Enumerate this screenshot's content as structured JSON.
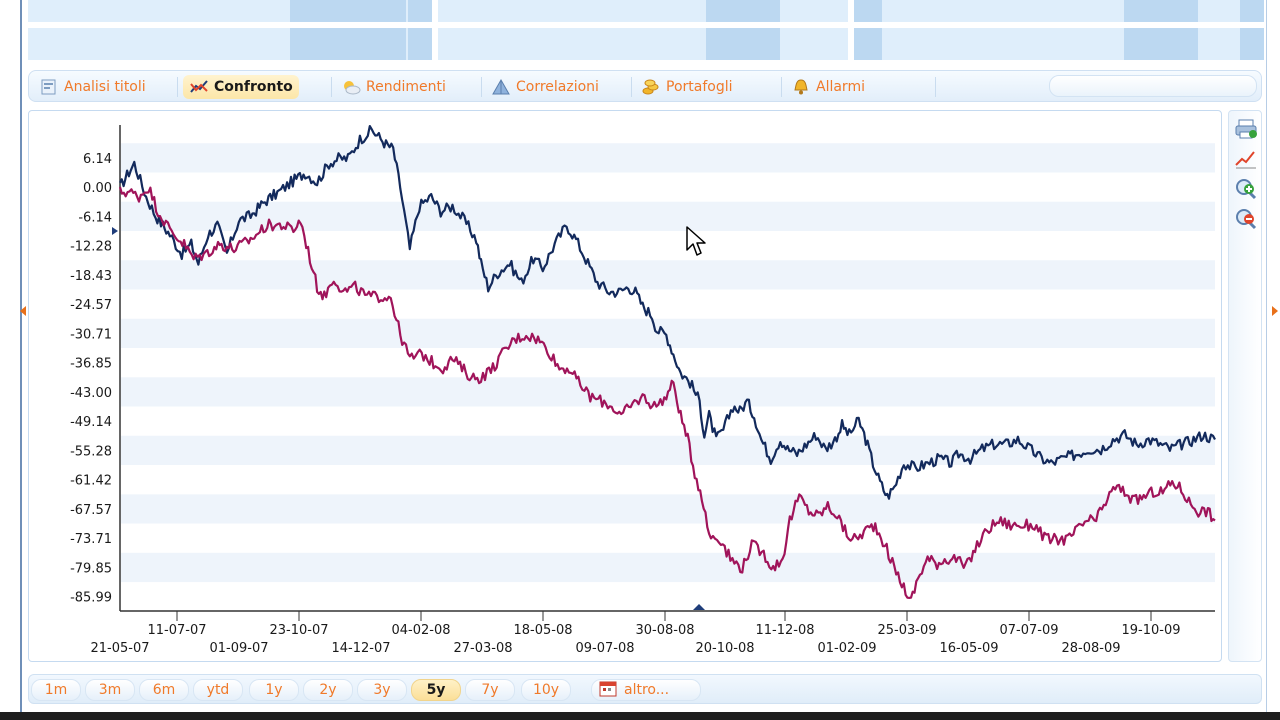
{
  "tabs": [
    {
      "id": "analisi",
      "label": "Analisi titoli",
      "icon": "document-chart-icon",
      "active": false
    },
    {
      "id": "confronto",
      "label": "Confronto",
      "icon": "compare-lines-icon",
      "active": true
    },
    {
      "id": "rendimenti",
      "label": "Rendimenti",
      "icon": "sun-cloud-icon",
      "active": false
    },
    {
      "id": "correlazioni",
      "label": "Correlazioni",
      "icon": "pyramid-icon",
      "active": false
    },
    {
      "id": "portafogli",
      "label": "Portafogli",
      "icon": "coins-icon",
      "active": false
    },
    {
      "id": "allarmi",
      "label": "Allarmi",
      "icon": "bell-icon",
      "active": false
    }
  ],
  "periods": {
    "items": [
      "1m",
      "3m",
      "6m",
      "ytd",
      "1y",
      "2y",
      "3y",
      "5y",
      "7y",
      "10y"
    ],
    "active": "5y",
    "altro_label": "altro..."
  },
  "tools": [
    "print-icon",
    "line-chart-icon",
    "zoom-in-icon",
    "zoom-out-icon"
  ],
  "colors": {
    "series_a": "#132a5c",
    "series_b": "#a0145a",
    "accent": "#f07a2a",
    "band": "#eef4fb"
  },
  "chart_data": {
    "type": "line",
    "title": "",
    "xlabel": "",
    "ylabel": "",
    "ylim": [
      -89.0,
      12.2
    ],
    "y_ticks": [
      "6.14",
      "0.00",
      "-6.14",
      "-12.28",
      "-18.43",
      "-24.57",
      "-30.71",
      "-36.85",
      "-43.00",
      "-49.14",
      "-55.28",
      "-61.42",
      "-67.57",
      "-73.71",
      "-79.85",
      "-85.99"
    ],
    "x_ticks_upper": [
      "11-07-07",
      "23-10-07",
      "04-02-08",
      "18-05-08",
      "30-08-08",
      "11-12-08",
      "25-03-09",
      "07-07-09",
      "19-10-09"
    ],
    "x_ticks_lower": [
      "21-05-07",
      "01-09-07",
      "14-12-07",
      "27-03-08",
      "09-07-08",
      "20-10-08",
      "01-02-09",
      "16-05-09",
      "28-08-09"
    ],
    "x_range_days": [
      0,
      922
    ],
    "series": [
      {
        "color": "#132a5c",
        "points": [
          [
            0,
            0
          ],
          [
            12,
            5
          ],
          [
            22,
            -2
          ],
          [
            30,
            -6
          ],
          [
            42,
            -10
          ],
          [
            52,
            -14
          ],
          [
            60,
            -12
          ],
          [
            66,
            -16
          ],
          [
            74,
            -10
          ],
          [
            82,
            -8
          ],
          [
            90,
            -14
          ],
          [
            100,
            -7
          ],
          [
            110,
            -6
          ],
          [
            122,
            -3
          ],
          [
            134,
            -1
          ],
          [
            144,
            1
          ],
          [
            156,
            3
          ],
          [
            166,
            1
          ],
          [
            176,
            5
          ],
          [
            184,
            6
          ],
          [
            192,
            6
          ],
          [
            202,
            10
          ],
          [
            212,
            12
          ],
          [
            224,
            9
          ],
          [
            230,
            8
          ],
          [
            236,
            0
          ],
          [
            244,
            -13
          ],
          [
            252,
            -4
          ],
          [
            262,
            -2
          ],
          [
            270,
            -5
          ],
          [
            280,
            -4
          ],
          [
            290,
            -7
          ],
          [
            300,
            -11
          ],
          [
            304,
            -16
          ],
          [
            310,
            -21
          ],
          [
            318,
            -18
          ],
          [
            328,
            -16
          ],
          [
            338,
            -20
          ],
          [
            348,
            -15
          ],
          [
            356,
            -17
          ],
          [
            366,
            -12
          ],
          [
            376,
            -8
          ],
          [
            384,
            -11
          ],
          [
            394,
            -16
          ],
          [
            402,
            -20
          ],
          [
            412,
            -22
          ],
          [
            420,
            -22
          ],
          [
            428,
            -21
          ],
          [
            434,
            -22
          ],
          [
            440,
            -25
          ],
          [
            448,
            -27
          ],
          [
            452,
            -30
          ],
          [
            460,
            -31
          ],
          [
            466,
            -35
          ],
          [
            472,
            -39
          ],
          [
            480,
            -41
          ],
          [
            488,
            -45
          ],
          [
            492,
            -52
          ],
          [
            496,
            -48
          ],
          [
            502,
            -53
          ],
          [
            508,
            -51
          ],
          [
            516,
            -46
          ],
          [
            522,
            -47
          ],
          [
            528,
            -45
          ],
          [
            534,
            -48
          ],
          [
            540,
            -53
          ],
          [
            548,
            -57
          ],
          [
            556,
            -53
          ],
          [
            562,
            -55
          ],
          [
            570,
            -56
          ],
          [
            578,
            -54
          ],
          [
            586,
            -52
          ],
          [
            594,
            -55
          ],
          [
            602,
            -53
          ],
          [
            608,
            -50
          ],
          [
            614,
            -52
          ],
          [
            622,
            -49
          ],
          [
            628,
            -53
          ],
          [
            634,
            -58
          ],
          [
            640,
            -62
          ],
          [
            646,
            -65
          ],
          [
            652,
            -63
          ],
          [
            660,
            -58
          ],
          [
            670,
            -59
          ],
          [
            680,
            -58
          ],
          [
            690,
            -57
          ],
          [
            700,
            -58
          ],
          [
            706,
            -56
          ],
          [
            716,
            -57
          ],
          [
            726,
            -55
          ],
          [
            736,
            -54
          ],
          [
            746,
            -54
          ],
          [
            756,
            -53
          ],
          [
            766,
            -55
          ],
          [
            776,
            -57
          ],
          [
            784,
            -58
          ],
          [
            794,
            -57
          ],
          [
            806,
            -56
          ],
          [
            816,
            -55
          ],
          [
            826,
            -55
          ],
          [
            836,
            -53
          ],
          [
            846,
            -52
          ],
          [
            856,
            -54
          ],
          [
            866,
            -53
          ],
          [
            876,
            -54
          ],
          [
            884,
            -55
          ],
          [
            894,
            -54
          ],
          [
            904,
            -53
          ],
          [
            912,
            -52
          ],
          [
            922,
            -53
          ]
        ]
      },
      {
        "color": "#a0145a",
        "points": [
          [
            0,
            -1
          ],
          [
            8,
            -1
          ],
          [
            16,
            -2
          ],
          [
            24,
            0
          ],
          [
            32,
            -5
          ],
          [
            42,
            -9
          ],
          [
            54,
            -12
          ],
          [
            62,
            -15
          ],
          [
            72,
            -14
          ],
          [
            84,
            -12
          ],
          [
            96,
            -13
          ],
          [
            110,
            -11
          ],
          [
            124,
            -8
          ],
          [
            136,
            -8
          ],
          [
            146,
            -9
          ],
          [
            152,
            -7
          ],
          [
            160,
            -15
          ],
          [
            166,
            -21
          ],
          [
            172,
            -23
          ],
          [
            180,
            -19
          ],
          [
            188,
            -22
          ],
          [
            198,
            -21
          ],
          [
            208,
            -23
          ],
          [
            218,
            -23
          ],
          [
            228,
            -23
          ],
          [
            236,
            -31
          ],
          [
            244,
            -36
          ],
          [
            254,
            -35
          ],
          [
            264,
            -37
          ],
          [
            272,
            -38
          ],
          [
            280,
            -36
          ],
          [
            288,
            -38
          ],
          [
            296,
            -40
          ],
          [
            304,
            -40
          ],
          [
            314,
            -38
          ],
          [
            322,
            -35
          ],
          [
            332,
            -32
          ],
          [
            342,
            -31
          ],
          [
            352,
            -32
          ],
          [
            360,
            -34
          ],
          [
            370,
            -38
          ],
          [
            378,
            -38
          ],
          [
            386,
            -41
          ],
          [
            396,
            -44
          ],
          [
            406,
            -45
          ],
          [
            414,
            -46
          ],
          [
            422,
            -48
          ],
          [
            430,
            -46
          ],
          [
            440,
            -44
          ],
          [
            450,
            -46
          ],
          [
            460,
            -44
          ],
          [
            466,
            -41
          ],
          [
            472,
            -48
          ],
          [
            478,
            -53
          ],
          [
            484,
            -60
          ],
          [
            490,
            -65
          ],
          [
            496,
            -73
          ],
          [
            506,
            -74
          ],
          [
            514,
            -78
          ],
          [
            524,
            -80
          ],
          [
            532,
            -75
          ],
          [
            542,
            -77
          ],
          [
            550,
            -80
          ],
          [
            558,
            -78
          ],
          [
            564,
            -70
          ],
          [
            572,
            -65
          ],
          [
            580,
            -68
          ],
          [
            588,
            -69
          ],
          [
            596,
            -67
          ],
          [
            604,
            -69
          ],
          [
            612,
            -73
          ],
          [
            620,
            -74
          ],
          [
            628,
            -72
          ],
          [
            636,
            -71
          ],
          [
            644,
            -75
          ],
          [
            652,
            -80
          ],
          [
            660,
            -84
          ],
          [
            666,
            -87
          ],
          [
            672,
            -82
          ],
          [
            680,
            -78
          ],
          [
            688,
            -79
          ],
          [
            696,
            -78
          ],
          [
            704,
            -78
          ],
          [
            712,
            -80
          ],
          [
            720,
            -76
          ],
          [
            730,
            -72
          ],
          [
            740,
            -70
          ],
          [
            750,
            -71
          ],
          [
            760,
            -71
          ],
          [
            770,
            -71
          ],
          [
            780,
            -74
          ],
          [
            790,
            -74
          ],
          [
            798,
            -74
          ],
          [
            806,
            -72
          ],
          [
            814,
            -70
          ],
          [
            822,
            -70
          ],
          [
            830,
            -66
          ],
          [
            838,
            -63
          ],
          [
            846,
            -64
          ],
          [
            854,
            -66
          ],
          [
            862,
            -65
          ],
          [
            870,
            -64
          ],
          [
            878,
            -64
          ],
          [
            886,
            -62
          ],
          [
            892,
            -63
          ],
          [
            900,
            -66
          ],
          [
            908,
            -68
          ],
          [
            916,
            -68
          ],
          [
            922,
            -70
          ]
        ]
      }
    ]
  }
}
